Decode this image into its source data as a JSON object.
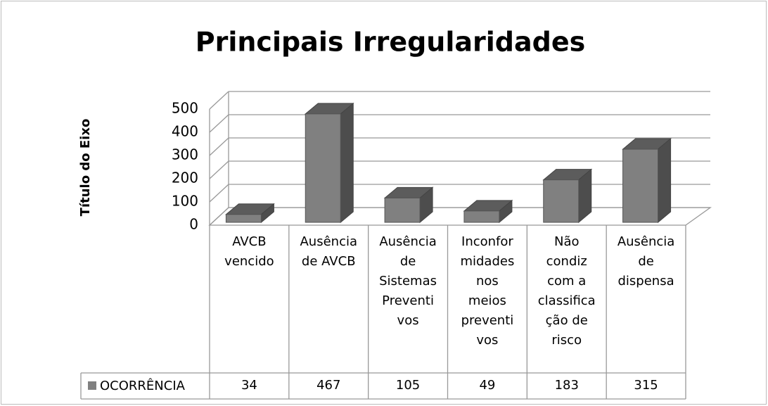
{
  "chart_data": {
    "type": "bar3d",
    "title": "Principais Irregularidades",
    "y_axis_label": "Título do Eixo",
    "categories": [
      "AVCB\nvencido",
      "Ausência\nde AVCB",
      "Ausência\nde\nSistemas\nPreventi\nvos",
      "Inconfor\nmidades\nnos\nmeios\npreventi\nvos",
      "Não\ncondiz\ncom a\nclassifica\nção de\nrisco",
      "Ausência\nde\ndispensa"
    ],
    "series": [
      {
        "name": "OCORRÊNCIA",
        "color": "#808080",
        "values": [
          34,
          467,
          105,
          49,
          183,
          315
        ]
      }
    ],
    "ylim": [
      0,
      500
    ],
    "yticks": [
      0,
      100,
      200,
      300,
      400,
      500
    ],
    "grid": true,
    "legend": "data-table"
  }
}
